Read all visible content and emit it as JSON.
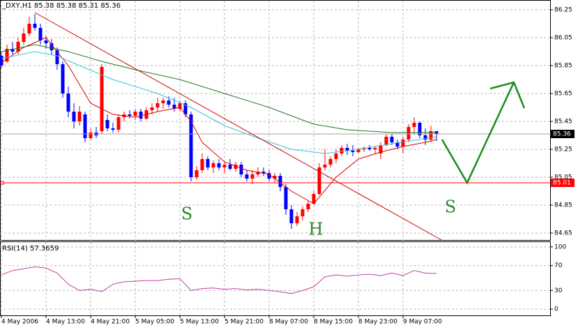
{
  "chart_data": [
    {
      "type": "candlestick",
      "title": "_DXY,H1 85.38 85.38 85.31 85.36",
      "categories": [
        "4 May 2006",
        null,
        null,
        null,
        null,
        null,
        null,
        null,
        "4 May 13:00",
        null,
        null,
        null,
        null,
        null,
        null,
        null,
        "4 May 21:00",
        null,
        null,
        null,
        null,
        null,
        null,
        null,
        "5 May 05:00",
        null,
        null,
        null,
        null,
        null,
        null,
        null,
        "5 May 13:00",
        null,
        null,
        null,
        null,
        null,
        null,
        null,
        "5 May 21:00",
        null,
        null,
        null,
        null,
        null,
        null,
        null,
        "8 May 07:00",
        null,
        null,
        null,
        null,
        null,
        null,
        null,
        "8 May 15:00",
        null,
        null,
        null,
        null,
        null,
        null,
        null,
        "8 May 23:00",
        null,
        null,
        null,
        null,
        null,
        null,
        null,
        "9 May 07:00",
        null,
        null,
        null,
        null,
        null,
        null
      ],
      "open": [
        85.92,
        85.88,
        85.97,
        85.95,
        86.02,
        86.08,
        86.15,
        86.12,
        86.03,
        86.01,
        85.96,
        85.86,
        85.65,
        85.52,
        85.45,
        85.5,
        85.33,
        85.37,
        85.38,
        85.46,
        85.4,
        85.39,
        85.48,
        85.5,
        85.49,
        85.52,
        85.47,
        85.53,
        85.55,
        85.58,
        85.6,
        85.57,
        85.54,
        85.58,
        85.5,
        85.05,
        85.1,
        85.18,
        85.12,
        85.15,
        85.12,
        85.14,
        85.11,
        85.14,
        85.07,
        85.04,
        85.07,
        85.09,
        85.08,
        85.04,
        85.06,
        84.98,
        84.82,
        84.72,
        84.77,
        84.82,
        84.86,
        84.93,
        85.12,
        85.14,
        85.18,
        85.22,
        85.26,
        85.24,
        85.23,
        85.25,
        85.26,
        85.25,
        85.22,
        85.28,
        85.34,
        85.3,
        85.27,
        85.32,
        85.41,
        85.44,
        85.35,
        85.32,
        85.38
      ],
      "high": [
        85.95,
        86,
        86.02,
        86.05,
        86.12,
        86.2,
        86.22,
        86.15,
        86.06,
        86.04,
        85.98,
        85.88,
        85.7,
        85.58,
        85.56,
        85.52,
        85.4,
        85.41,
        85.86,
        85.5,
        85.44,
        85.5,
        85.52,
        85.53,
        85.54,
        85.54,
        85.55,
        85.58,
        85.62,
        85.62,
        85.63,
        85.62,
        85.6,
        85.6,
        85.52,
        85.13,
        85.22,
        85.2,
        85.17,
        85.18,
        85.16,
        85.18,
        85.16,
        85.16,
        85.1,
        85.1,
        85.12,
        85.12,
        85.1,
        85.08,
        85.08,
        85,
        84.85,
        84.8,
        84.84,
        84.88,
        84.95,
        85.15,
        85.25,
        85.2,
        85.25,
        85.28,
        85.29,
        85.28,
        85.26,
        85.27,
        85.28,
        85.27,
        85.3,
        85.36,
        85.36,
        85.32,
        85.34,
        85.43,
        85.48,
        85.45,
        85.4,
        85.42,
        85.38
      ],
      "low": [
        85.83,
        85.87,
        85.93,
        85.93,
        86,
        86.06,
        86.1,
        86,
        85.97,
        85.93,
        85.82,
        85.62,
        85.48,
        85.4,
        85.42,
        85.3,
        85.32,
        85.33,
        85.36,
        85.38,
        85.37,
        85.37,
        85.45,
        85.47,
        85.46,
        85.45,
        85.46,
        85.5,
        85.52,
        85.54,
        85.55,
        85.52,
        85.52,
        85.48,
        85.02,
        85.03,
        85.08,
        85.1,
        85.08,
        85.1,
        85.08,
        85.1,
        85.09,
        85.05,
        85.02,
        85,
        85.05,
        85.06,
        85.02,
        85.01,
        84.95,
        84.78,
        84.68,
        84.7,
        84.74,
        84.8,
        84.85,
        84.92,
        85.1,
        85.12,
        85.15,
        85.2,
        85.21,
        85.2,
        85.22,
        85.23,
        85.24,
        85.22,
        85.18,
        85.27,
        85.28,
        85.25,
        85.22,
        85.3,
        85.36,
        85.33,
        85.28,
        85.3,
        85.31
      ],
      "close": [
        85.85,
        85.97,
        85.95,
        86.02,
        86.08,
        86.15,
        86.12,
        86.03,
        86.01,
        85.96,
        85.86,
        85.65,
        85.52,
        85.45,
        85.52,
        85.33,
        85.37,
        85.35,
        85.84,
        85.4,
        85.39,
        85.48,
        85.5,
        85.49,
        85.52,
        85.47,
        85.53,
        85.55,
        85.58,
        85.6,
        85.57,
        85.54,
        85.58,
        85.5,
        85.05,
        85.1,
        85.18,
        85.12,
        85.15,
        85.12,
        85.14,
        85.11,
        85.14,
        85.07,
        85.04,
        85.07,
        85.09,
        85.08,
        85.04,
        85.06,
        84.98,
        84.82,
        84.72,
        84.77,
        84.82,
        84.86,
        84.93,
        85.12,
        85.14,
        85.18,
        85.22,
        85.26,
        85.24,
        85.23,
        85.25,
        85.26,
        85.25,
        85.26,
        85.28,
        85.34,
        85.3,
        85.27,
        85.32,
        85.41,
        85.44,
        85.35,
        85.32,
        85.38,
        85.36
      ],
      "up_color": "#ff0000",
      "down_color": "#0000ff",
      "overlays": [
        {
          "color": "#e00000",
          "x": [
            0,
            4,
            8,
            12,
            16,
            20,
            24,
            28,
            32,
            34,
            36,
            40,
            44,
            48,
            52,
            56,
            60,
            64,
            68,
            72,
            76,
            78
          ],
          "values": [
            85.87,
            85.98,
            86.05,
            85.85,
            85.58,
            85.5,
            85.48,
            85.52,
            85.55,
            85.45,
            85.3,
            85.16,
            85.1,
            85.07,
            84.95,
            84.86,
            85.05,
            85.18,
            85.23,
            85.27,
            85.3,
            85.32
          ]
        },
        {
          "color": "#33c7d6",
          "x": [
            0,
            6,
            10,
            14,
            20,
            28,
            34,
            40,
            46,
            52,
            58,
            64,
            70,
            78
          ],
          "values": [
            85.9,
            85.95,
            85.92,
            85.85,
            85.75,
            85.65,
            85.55,
            85.42,
            85.33,
            85.25,
            85.22,
            85.25,
            85.29,
            85.34
          ]
        },
        {
          "color": "#1e7a1e",
          "x": [
            0,
            6,
            12,
            18,
            24,
            32,
            40,
            48,
            56,
            62,
            70,
            78
          ],
          "values": [
            85.95,
            86,
            85.95,
            85.88,
            85.82,
            85.75,
            85.65,
            85.55,
            85.43,
            85.39,
            85.37,
            85.37
          ]
        }
      ],
      "levels": [
        {
          "value": 85.01,
          "color": "#ff0000"
        },
        {
          "value": 85.36,
          "color": "#a0a0a0"
        }
      ],
      "annotations": [
        "S",
        "H",
        "S"
      ],
      "ylim": [
        84.595,
        86.315
      ],
      "yticks": [
        84.65,
        84.85,
        85.05,
        85.25,
        85.45,
        85.65,
        85.85,
        86.05,
        86.25
      ],
      "grid": true
    },
    {
      "type": "line",
      "title": "RSI(14) 57.3659",
      "color": "#c83ca0",
      "x": [
        0,
        2,
        4,
        6,
        8,
        10,
        12,
        14,
        16,
        18,
        20,
        22,
        24,
        26,
        28,
        30,
        32,
        34,
        36,
        38,
        40,
        42,
        44,
        46,
        48,
        50,
        52,
        54,
        56,
        58,
        60,
        62,
        64,
        66,
        68,
        70,
        72,
        74,
        76,
        78
      ],
      "values": [
        55,
        62,
        65,
        68,
        66,
        58,
        40,
        30,
        32,
        28,
        40,
        44,
        45,
        46,
        46,
        48,
        49,
        30,
        33,
        34,
        32,
        33,
        31,
        32,
        30,
        28,
        25,
        30,
        36,
        52,
        55,
        53,
        55,
        56,
        54,
        58,
        54,
        62,
        58,
        57.37
      ],
      "ylim": [
        -10,
        107.8
      ],
      "yticks": [
        0,
        30,
        70,
        100
      ],
      "grid": true
    }
  ]
}
